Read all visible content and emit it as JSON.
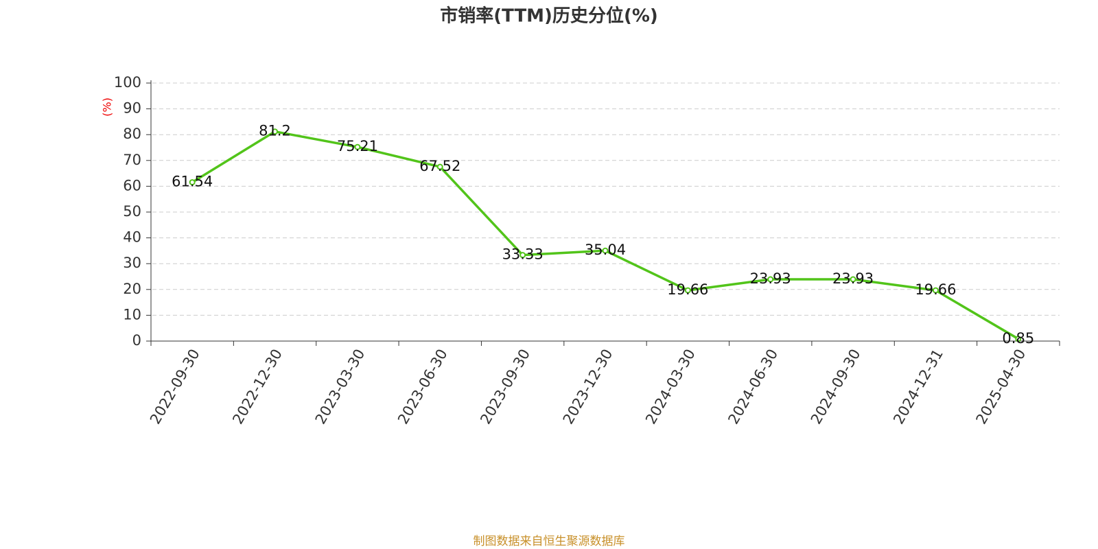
{
  "chart_data": {
    "type": "line",
    "title": "市销率(TTM)历史分位(%)",
    "ylabel": "(%)",
    "categories": [
      "2022-09-30",
      "2022-12-30",
      "2023-03-30",
      "2023-06-30",
      "2023-09-30",
      "2023-12-30",
      "2024-03-30",
      "2024-06-30",
      "2024-09-30",
      "2024-12-31",
      "2025-04-30"
    ],
    "values": [
      61.54,
      81.2,
      75.21,
      67.52,
      33.33,
      35.04,
      19.66,
      23.93,
      23.93,
      19.66,
      0.85
    ],
    "color": "#52c41a",
    "ylim": [
      0,
      100
    ],
    "yticks": [
      0,
      10,
      20,
      30,
      40,
      50,
      60,
      70,
      80,
      90,
      100
    ],
    "grid": true,
    "source": "制图数据来自恒生聚源数据库"
  }
}
